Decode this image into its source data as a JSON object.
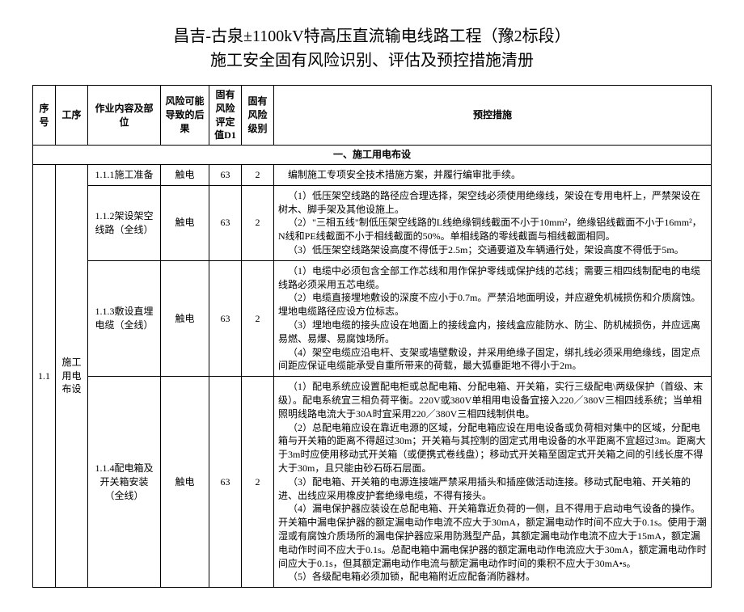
{
  "title_line1": "昌吉-古泉±1100kV特高压直流输电线路工程（豫2标段）",
  "title_line2": "施工安全固有风险识别、评估及预控措施清册",
  "headers": {
    "xh": "序号",
    "gx": "工序",
    "nrb": "作业内容及部位",
    "hg": "风险可能导致的后果",
    "d1": "固有风险评定值D1",
    "jb": "固有风险级别",
    "ykc": "预控措施"
  },
  "section_title": "一、施工用电布设",
  "group": {
    "xh": "1.1",
    "gx": "施工用电布设"
  },
  "rows": {
    "r1": {
      "nrb": "1.1.1施工准备",
      "hg": "触电",
      "d1": "63",
      "jb": "2",
      "m": "编制施工专项安全技术措施方案，并履行编审批手续。"
    },
    "r2": {
      "nrb": "1.1.2架设架空线路（全线）",
      "hg": "触电",
      "d1": "63",
      "jb": "2",
      "m1": "（1）低压架空线路的路径应合理选择，架空线必须使用绝缘线，架设在专用电杆上，严禁架设在树木、脚手架及其他设施上。",
      "m2": "（2）\"三相五线\"制低压架空线路的L线绝缘铜线截面不小于10mm²，绝缘铝线截面不小于16mm²，N线和PE线截面不小于相线截面的50%。单相线路的零线截面与相线截面相同。",
      "m3": "（3）低压架空线路架设高度不得低于2.5m；交通要道及车辆通行处，架设高度不得低于5m。"
    },
    "r3": {
      "nrb": "1.1.3敷设直埋电缆（全线）",
      "hg": "触电",
      "d1": "63",
      "jb": "2",
      "m1": "（1）电缆中必须包含全部工作芯线和用作保护零线或保护线的芯线；需要三相四线制配电的电缆线路必须采用五芯电缆。",
      "m2": "（2）电缆直接埋地敷设的深度不应小于0.7m。严禁沿地面明设，并应避免机械损伤和介质腐蚀。埋地电缆路径应设方位标志。",
      "m3": "（3）埋地电缆的接头应设在地面上的接线盒内，接线盒应能防水、防尘、防机械损伤，并应远离易燃、易爆、易腐蚀场所。",
      "m4": "（4）架空电缆应沿电杆、支架或墙壁敷设，并采用绝缘子固定，绑扎线必须采用绝缘线，固定点间距应保证电缆能承受自重所带来的荷载，最大弧垂距地不得小于2m。"
    },
    "r4": {
      "nrb": "1.1.4配电箱及开关箱安装（全线）",
      "hg": "触电",
      "d1": "63",
      "jb": "2",
      "m1": "（1）配电系统应设置配电柜或总配电箱、分配电箱、开关箱，实行三级配电\\两级保护（首级、末级）。配电系统宜三相负荷平衡。220V或380V单相用电设备宜接入220／380V三相四线系统；当单相照明线路电流大于30A时宜采用220／380V三相四线制供电。",
      "m2": "（2）总配电箱应设在靠近电源的区域，分配电箱应设在用电设备或负荷相对集中的区域，分配电箱与开关箱的距离不得超过30m；开关箱与其控制的固定式用电设备的水平距离不宜超过3m。距离大于3m时应使用移动式开关箱（或便携式卷线盘）；移动式开关箱至固定式开关箱之间的引线长度不得大于30m，且只能由砂石砾石层面。",
      "m3": "（3）配电箱、开关箱的电源连接端严禁采用插头和插座做活动连接。移动式配电箱、开关箱的进、出线应采用橡皮护套绝缘电缆，不得有接头。",
      "m4": "（4）漏电保护器应装设在总配电箱、开关箱靠近负荷的一侧，且不得用于启动电气设备的操作。开关箱中漏电保护器的额定漏电动作电流不应大于30mA，额定漏电动作时间不应大于0.1s。使用于潮湿或有腐蚀介质场所的漏电保护器应采用防溅型产品，其额定漏电动作电流不应大于15mA，额定漏电动作时间不应大于0.1s。总配电箱中漏电保护器的额定漏电动作电流应大于30mA，额定漏电动作时间应大于0.1s，但其额定漏电动作电流与额定漏电动作时间的乘积不应大于30mA•s。",
      "m5": "（5）各级配电箱必须加锁，配电箱附近应配备消防器材。"
    }
  }
}
